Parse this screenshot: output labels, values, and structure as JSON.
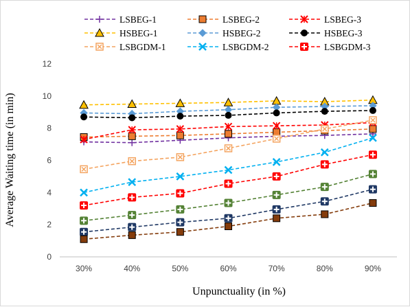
{
  "chart_data": {
    "type": "line",
    "title": "",
    "xlabel": "Unpunctuality (in %)",
    "ylabel": "Average Waiting time (in min)",
    "categories": [
      "30%",
      "40%",
      "50%",
      "60%",
      "70%",
      "80%",
      "90%"
    ],
    "ylim": [
      0,
      12
    ],
    "yticks": [
      0,
      2,
      4,
      6,
      8,
      10,
      12
    ],
    "grid": false,
    "legend_position": "top",
    "series": [
      {
        "name": "LSBEG-1",
        "color": "#7030a0",
        "marker": "plus",
        "values": [
          7.15,
          7.1,
          7.25,
          7.4,
          7.5,
          7.55,
          7.65
        ]
      },
      {
        "name": "LSBEG-2",
        "color": "#ed7d31",
        "marker": "square-dark",
        "values": [
          7.45,
          7.5,
          7.55,
          7.65,
          7.75,
          7.85,
          7.95
        ]
      },
      {
        "name": "LSBEG-3",
        "color": "#ff0000",
        "marker": "star",
        "values": [
          7.3,
          7.9,
          7.95,
          8.1,
          8.15,
          8.2,
          8.35
        ]
      },
      {
        "name": "HSBEG-1",
        "color": "#ffc000",
        "marker": "triangle",
        "values": [
          9.45,
          9.5,
          9.55,
          9.6,
          9.7,
          9.65,
          9.75
        ]
      },
      {
        "name": "HSBEG-2",
        "color": "#5b9bd5",
        "marker": "diamond",
        "values": [
          8.95,
          8.9,
          9.05,
          9.15,
          9.3,
          9.35,
          9.4
        ]
      },
      {
        "name": "HSBEG-3",
        "color": "#000000",
        "marker": "circle",
        "values": [
          8.7,
          8.65,
          8.75,
          8.8,
          8.95,
          9.05,
          9.1
        ]
      },
      {
        "name": "LSBGDM-1",
        "color": "#f4a460",
        "marker": "square-x",
        "values": [
          5.45,
          5.95,
          6.2,
          6.75,
          7.35,
          7.95,
          8.5
        ]
      },
      {
        "name": "LSBGDM-2",
        "color": "#00b0f0",
        "marker": "x",
        "values": [
          4.0,
          4.65,
          5.0,
          5.4,
          5.9,
          6.5,
          7.4
        ]
      },
      {
        "name": "LSBGDM-3",
        "color": "#ff0000",
        "marker": "square-plus",
        "values": [
          3.2,
          3.7,
          3.95,
          4.55,
          5.0,
          5.75,
          6.35
        ]
      },
      {
        "name": "",
        "color": "#548235",
        "marker": "square-plus",
        "values": [
          2.25,
          2.6,
          2.95,
          3.35,
          3.85,
          4.35,
          5.15
        ]
      },
      {
        "name": "",
        "color": "#1f3864",
        "marker": "square-plus",
        "values": [
          1.55,
          1.85,
          2.15,
          2.4,
          2.95,
          3.45,
          4.2
        ]
      },
      {
        "name": "",
        "color": "#843c0c",
        "marker": "square-dark",
        "values": [
          1.1,
          1.35,
          1.55,
          1.9,
          2.4,
          2.65,
          3.35
        ]
      }
    ]
  }
}
